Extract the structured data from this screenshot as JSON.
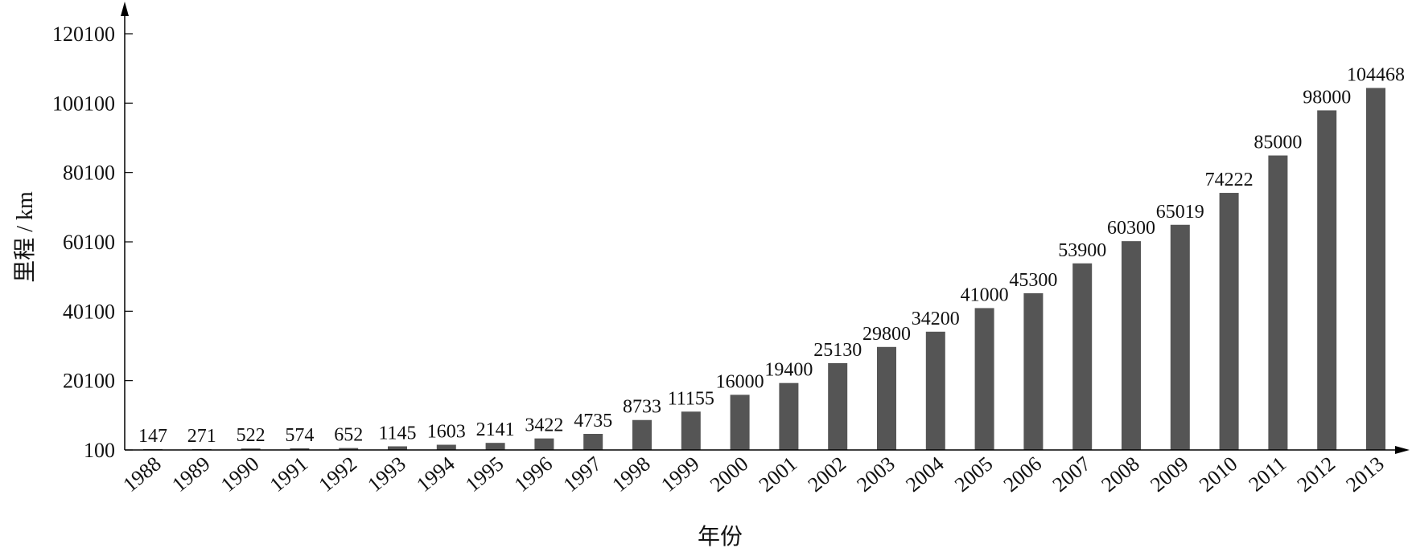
{
  "chart_data": {
    "type": "bar",
    "xlabel": "年份",
    "ylabel": "里程 / km",
    "categories": [
      "1988",
      "1989",
      "1990",
      "1991",
      "1992",
      "1993",
      "1994",
      "1995",
      "1996",
      "1997",
      "1998",
      "1999",
      "2000",
      "2001",
      "2002",
      "2003",
      "2004",
      "2005",
      "2006",
      "2007",
      "2008",
      "2009",
      "2010",
      "2011",
      "2012",
      "2013"
    ],
    "values": [
      147,
      271,
      522,
      574,
      652,
      1145,
      1603,
      2141,
      3422,
      4735,
      8733,
      11155,
      16000,
      19400,
      25130,
      29800,
      34200,
      41000,
      45300,
      53900,
      60300,
      65019,
      74222,
      85000,
      98000,
      104468
    ],
    "data_labels": [
      "147",
      "271",
      "522",
      "574",
      "652",
      "1145",
      "1603",
      "2141",
      "3422",
      "4735",
      "8733",
      "11155",
      "16000",
      "19400",
      "25130",
      "29800",
      "34200",
      "41000",
      "45300",
      "53900",
      "60300",
      "65019",
      "74222",
      "85000",
      "98000",
      "104468"
    ],
    "y_ticks": [
      100,
      20100,
      40100,
      60100,
      80100,
      100100,
      120100
    ],
    "y_tick_labels": [
      "100",
      "20100",
      "40100",
      "60100",
      "80100",
      "100100",
      "120100"
    ],
    "ylim": [
      100,
      120100
    ],
    "grid": false,
    "bar_color": "#555555"
  }
}
